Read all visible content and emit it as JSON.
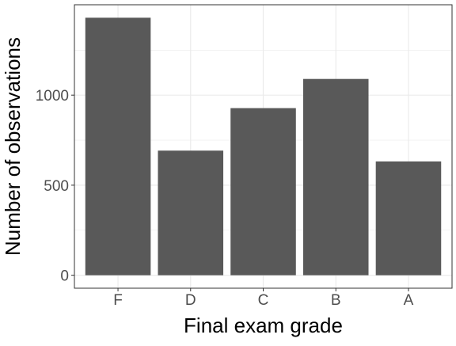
{
  "chart_data": {
    "type": "bar",
    "categories": [
      "F",
      "D",
      "C",
      "B",
      "A"
    ],
    "values": [
      1430,
      692,
      928,
      1090,
      632
    ],
    "xlabel": "Final exam grade",
    "ylabel": "Number of observations",
    "yticks": [
      0,
      500,
      1000
    ],
    "ylim": [
      -72,
      1502
    ],
    "grid": true,
    "bar_color": "#595959",
    "grid_color": "#ebebeb",
    "tick_label_color": "#4d4d4d"
  }
}
